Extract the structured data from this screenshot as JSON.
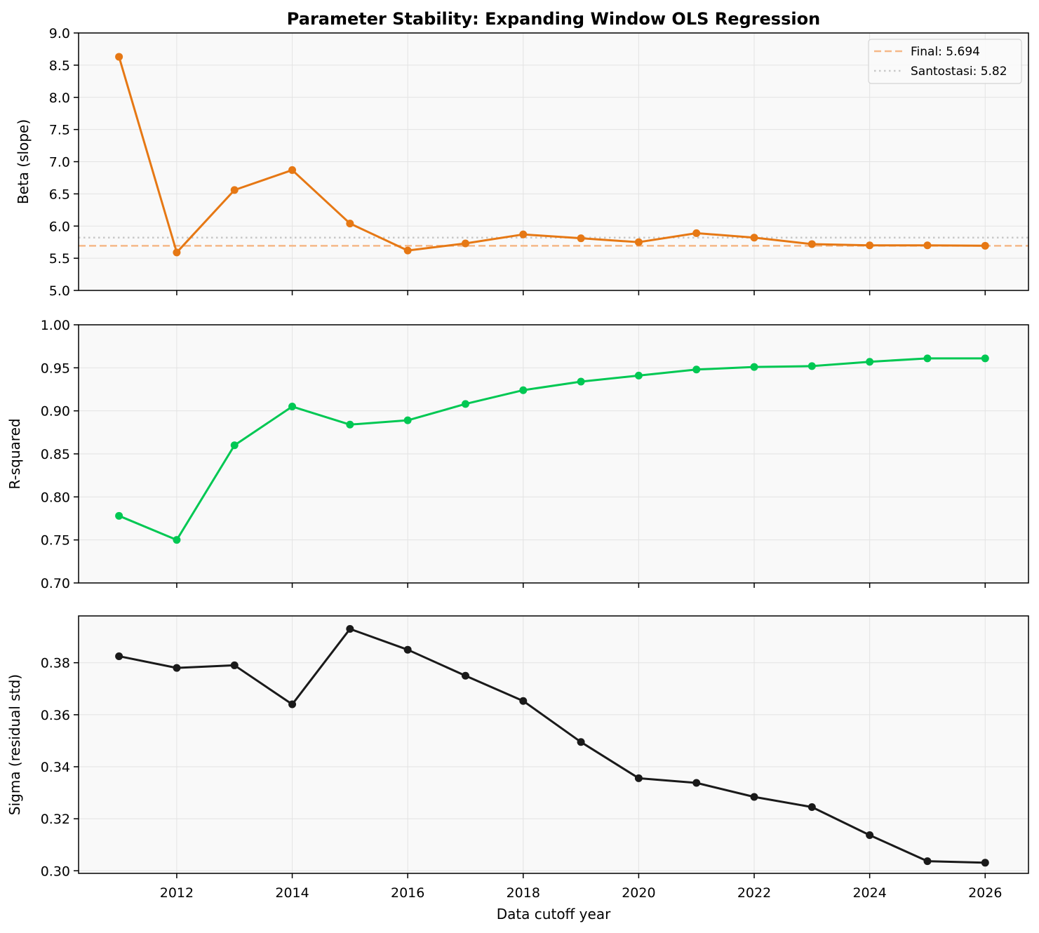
{
  "title": "Parameter Stability: Expanding Window OLS Regression",
  "xlabel": "Data cutoff year",
  "x_ticks": [
    2012,
    2014,
    2016,
    2018,
    2020,
    2022,
    2024,
    2026
  ],
  "xlim": [
    2010.3,
    2026.75
  ],
  "chart_data": [
    {
      "type": "line",
      "ylabel": "Beta (slope)",
      "ylim": [
        5.0,
        9.0
      ],
      "y_ticks": [
        5.0,
        5.5,
        6.0,
        6.5,
        7.0,
        7.5,
        8.0,
        8.5,
        9.0
      ],
      "y_tick_labels": [
        "5.0",
        "5.5",
        "6.0",
        "6.5",
        "7.0",
        "7.5",
        "8.0",
        "8.5",
        "9.0"
      ],
      "grid": true,
      "legend_position": "top-right",
      "series": [
        {
          "name": "Beta",
          "color": "#e67814",
          "x": [
            2011,
            2012,
            2013,
            2014,
            2015,
            2016,
            2017,
            2018,
            2019,
            2020,
            2021,
            2022,
            2023,
            2024,
            2025,
            2026
          ],
          "values": [
            8.63,
            5.59,
            6.56,
            6.87,
            6.04,
            5.62,
            5.73,
            5.87,
            5.81,
            5.75,
            5.89,
            5.82,
            5.72,
            5.7,
            5.7,
            5.694
          ]
        }
      ],
      "reference_lines": [
        {
          "label": "Final: 5.694",
          "value": 5.694,
          "color": "#f5b888",
          "style": "dashed"
        },
        {
          "label": "Santostasi: 5.82",
          "value": 5.82,
          "color": "#c8c8c8",
          "style": "dotted"
        }
      ]
    },
    {
      "type": "line",
      "ylabel": "R-squared",
      "ylim": [
        0.7,
        1.0
      ],
      "y_ticks": [
        0.7,
        0.75,
        0.8,
        0.85,
        0.9,
        0.95,
        1.0
      ],
      "y_tick_labels": [
        "0.70",
        "0.75",
        "0.80",
        "0.85",
        "0.90",
        "0.95",
        "1.00"
      ],
      "grid": true,
      "series": [
        {
          "name": "R-squared",
          "color": "#00c853",
          "x": [
            2011,
            2012,
            2013,
            2014,
            2015,
            2016,
            2017,
            2018,
            2019,
            2020,
            2021,
            2022,
            2023,
            2024,
            2025,
            2026
          ],
          "values": [
            0.778,
            0.75,
            0.86,
            0.905,
            0.884,
            0.889,
            0.908,
            0.924,
            0.934,
            0.941,
            0.948,
            0.951,
            0.952,
            0.957,
            0.961,
            0.961
          ]
        }
      ]
    },
    {
      "type": "line",
      "ylabel": "Sigma (residual std)",
      "ylim": [
        0.299,
        0.398
      ],
      "y_ticks": [
        0.3,
        0.32,
        0.34,
        0.36,
        0.38
      ],
      "y_tick_labels": [
        "0.30",
        "0.32",
        "0.34",
        "0.36",
        "0.38"
      ],
      "grid": true,
      "series": [
        {
          "name": "Sigma",
          "color": "#1a1a1a",
          "x": [
            2011,
            2012,
            2013,
            2014,
            2015,
            2016,
            2017,
            2018,
            2019,
            2020,
            2021,
            2022,
            2023,
            2024,
            2025,
            2026
          ],
          "values": [
            0.3825,
            0.378,
            0.379,
            0.364,
            0.393,
            0.385,
            0.375,
            0.3653,
            0.3495,
            0.3356,
            0.3338,
            0.3284,
            0.3245,
            0.3137,
            0.3037,
            0.3031
          ]
        }
      ]
    }
  ]
}
